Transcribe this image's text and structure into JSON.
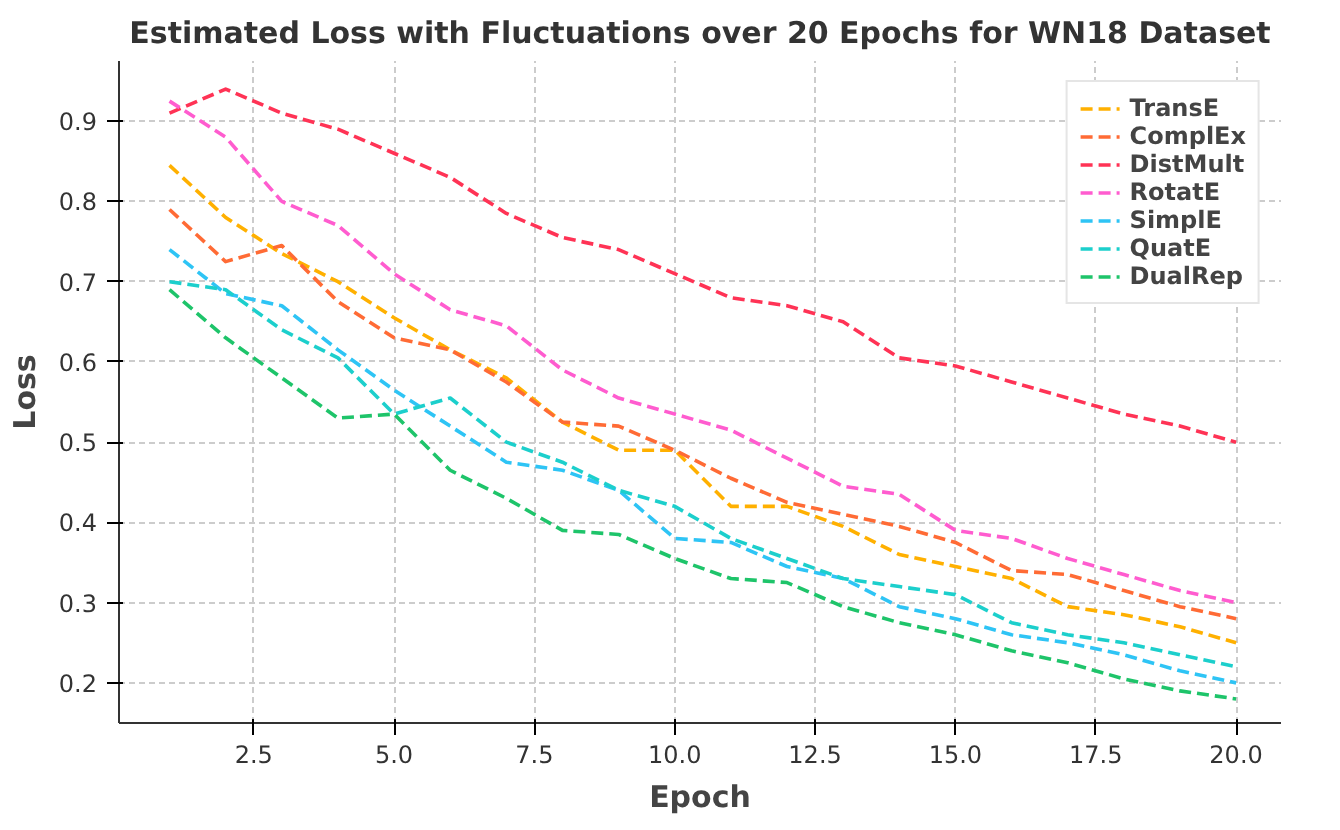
{
  "chart_data": {
    "type": "line",
    "title": "Estimated Loss with Fluctuations over 20 Epochs for WN18 Dataset",
    "xlabel": "Epoch",
    "ylabel": "Loss",
    "x": [
      1,
      2,
      3,
      4,
      5,
      6,
      7,
      8,
      9,
      10,
      11,
      12,
      13,
      14,
      15,
      16,
      17,
      18,
      19,
      20
    ],
    "xlim": [
      0.1,
      20.8
    ],
    "ylim": [
      0.15,
      0.975
    ],
    "xticks": [
      {
        "value": 2.5,
        "label": "2.5"
      },
      {
        "value": 5,
        "label": "5.0"
      },
      {
        "value": 7.5,
        "label": "7.5"
      },
      {
        "value": 10,
        "label": "10.0"
      },
      {
        "value": 12.5,
        "label": "12.5"
      },
      {
        "value": 15,
        "label": "15.0"
      },
      {
        "value": 17.5,
        "label": "17.5"
      },
      {
        "value": 20,
        "label": "20.0"
      }
    ],
    "yticks": [
      0.2,
      0.3,
      0.4,
      0.5,
      0.6,
      0.7,
      0.8,
      0.9
    ],
    "grid": true,
    "legend": "top right",
    "line_style": "dashed",
    "marker": "none",
    "series": [
      {
        "name": "TransE",
        "color": "#ffb000",
        "values": [
          0.845,
          0.78,
          0.735,
          0.7,
          0.655,
          0.615,
          0.58,
          0.525,
          0.49,
          0.49,
          0.42,
          0.42,
          0.395,
          0.36,
          0.345,
          0.33,
          0.295,
          0.285,
          0.27,
          0.25
        ]
      },
      {
        "name": "ComplEx",
        "color": "#ff6b35",
        "values": [
          0.79,
          0.725,
          0.745,
          0.675,
          0.63,
          0.615,
          0.575,
          0.525,
          0.52,
          0.49,
          0.455,
          0.425,
          0.41,
          0.395,
          0.375,
          0.34,
          0.335,
          0.315,
          0.295,
          0.28
        ]
      },
      {
        "name": "DistMult",
        "color": "#ff3355",
        "values": [
          0.91,
          0.94,
          0.91,
          0.89,
          0.86,
          0.83,
          0.785,
          0.755,
          0.74,
          0.71,
          0.68,
          0.67,
          0.65,
          0.605,
          0.595,
          0.575,
          0.555,
          0.535,
          0.52,
          0.5
        ]
      },
      {
        "name": "RotatE",
        "color": "#ff5ccf",
        "values": [
          0.925,
          0.88,
          0.8,
          0.77,
          0.71,
          0.665,
          0.645,
          0.59,
          0.555,
          0.535,
          0.515,
          0.48,
          0.445,
          0.435,
          0.39,
          0.38,
          0.355,
          0.335,
          0.315,
          0.3
        ]
      },
      {
        "name": "SimplE",
        "color": "#2ec4f5",
        "values": [
          0.74,
          0.685,
          0.67,
          0.615,
          0.565,
          0.52,
          0.475,
          0.465,
          0.44,
          0.38,
          0.375,
          0.345,
          0.33,
          0.295,
          0.28,
          0.26,
          0.25,
          0.235,
          0.215,
          0.2
        ]
      },
      {
        "name": "QuatE",
        "color": "#1ccfcc",
        "values": [
          0.7,
          0.69,
          0.64,
          0.605,
          0.535,
          0.555,
          0.5,
          0.475,
          0.44,
          0.42,
          0.38,
          0.355,
          0.33,
          0.32,
          0.31,
          0.275,
          0.26,
          0.25,
          0.235,
          0.22
        ]
      },
      {
        "name": "DualRep",
        "color": "#1ec46a",
        "values": [
          0.69,
          0.63,
          0.58,
          0.53,
          0.535,
          0.465,
          0.43,
          0.39,
          0.385,
          0.355,
          0.33,
          0.325,
          0.295,
          0.275,
          0.26,
          0.24,
          0.225,
          0.205,
          0.19,
          0.18
        ]
      }
    ]
  }
}
